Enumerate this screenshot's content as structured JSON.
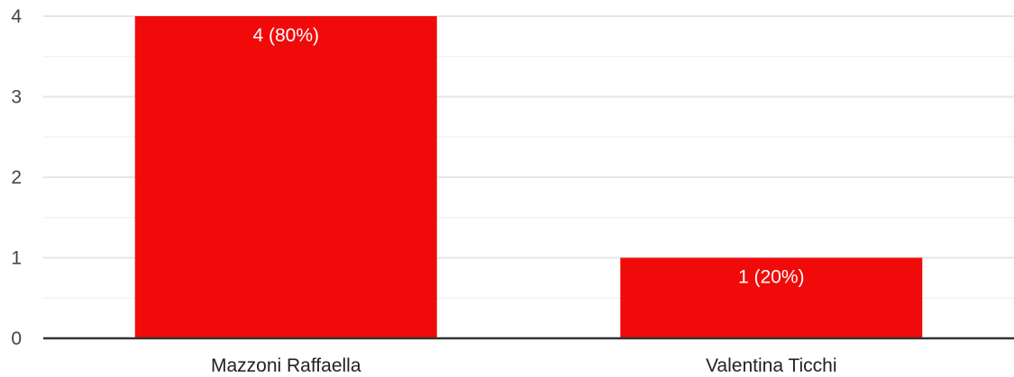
{
  "chart_data": {
    "type": "bar",
    "categories": [
      "Mazzoni Raffaella",
      "Valentina Ticchi"
    ],
    "values": [
      4,
      1
    ],
    "data_labels": [
      "4 (80%)",
      "1 (20%)"
    ],
    "ylim": [
      0,
      4
    ],
    "yticks": [
      "0",
      "1",
      "2",
      "3",
      "4"
    ],
    "grid": true,
    "bar_color": "#f00a0a",
    "title": "",
    "xlabel": "",
    "ylabel": ""
  }
}
